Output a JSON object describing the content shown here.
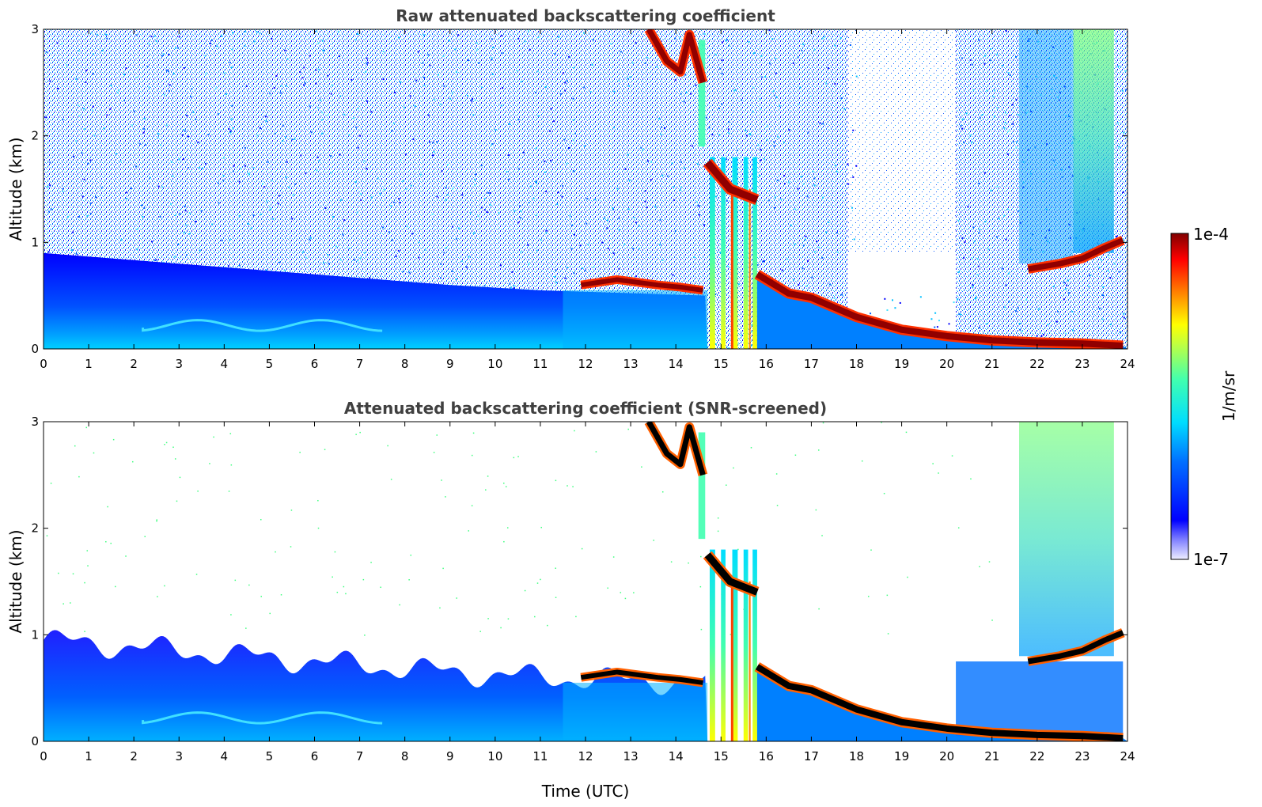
{
  "chart_data": [
    {
      "type": "heatmap",
      "title": "Raw attenuated backscattering coefficient",
      "xlabel": "",
      "ylabel": "Altitude (km)",
      "xlim": [
        0,
        24
      ],
      "ylim": [
        0,
        3
      ],
      "xticks": [
        "0",
        "1",
        "2",
        "3",
        "4",
        "5",
        "6",
        "7",
        "8",
        "9",
        "10",
        "11",
        "12",
        "13",
        "14",
        "15",
        "16",
        "17",
        "18",
        "19",
        "20",
        "21",
        "22",
        "23",
        "24"
      ],
      "yticks": [
        "0",
        "1",
        "2",
        "3"
      ],
      "features": {
        "noise_top_km": 3,
        "boundary_layer_top_km": [
          [
            0,
            0.9
          ],
          [
            3,
            0.8
          ],
          [
            6,
            0.7
          ],
          [
            9,
            0.6
          ],
          [
            11,
            0.55
          ],
          [
            14.7,
            0.5
          ]
        ],
        "cloud_layer_km": [
          [
            11.9,
            0.6
          ],
          [
            12.7,
            0.65
          ],
          [
            13.6,
            0.6
          ],
          [
            14.1,
            0.58
          ],
          [
            14.6,
            0.55
          ]
        ],
        "high_cloud_km": [
          [
            13.4,
            3.0
          ],
          [
            13.8,
            2.7
          ],
          [
            14.1,
            2.6
          ],
          [
            14.3,
            2.95
          ],
          [
            14.6,
            2.5
          ]
        ],
        "mid_cloud_km": [
          [
            14.7,
            1.75
          ],
          [
            15.2,
            1.5
          ],
          [
            15.8,
            1.4
          ]
        ],
        "descending_cloud_km": [
          [
            15.8,
            0.7
          ],
          [
            16.5,
            0.52
          ],
          [
            17,
            0.48
          ],
          [
            18,
            0.3
          ],
          [
            19,
            0.18
          ],
          [
            20,
            0.12
          ],
          [
            21,
            0.08
          ],
          [
            22,
            0.06
          ],
          [
            23,
            0.05
          ],
          [
            23.9,
            0.03
          ]
        ],
        "upper_cloud_km": [
          [
            21.8,
            0.75
          ],
          [
            22.5,
            0.8
          ],
          [
            23,
            0.85
          ],
          [
            23.5,
            0.95
          ],
          [
            23.9,
            1.02
          ]
        ]
      }
    },
    {
      "type": "heatmap",
      "title": "Attenuated backscattering coefficient (SNR-screened)",
      "xlabel": "Time (UTC)",
      "ylabel": "Altitude (km)",
      "xlim": [
        0,
        24
      ],
      "ylim": [
        0,
        3
      ],
      "xticks": [
        "0",
        "1",
        "2",
        "3",
        "4",
        "5",
        "6",
        "7",
        "8",
        "9",
        "10",
        "11",
        "12",
        "13",
        "14",
        "15",
        "16",
        "17",
        "18",
        "19",
        "20",
        "21",
        "22",
        "23",
        "24"
      ],
      "yticks": [
        "0",
        "1",
        "2",
        "3"
      ]
    }
  ],
  "colorbar": {
    "label": "1/m/sr",
    "max_label": "1e-4",
    "min_label": "1e-7",
    "scale": "log",
    "range": [
      1e-07,
      0.0001
    ],
    "colormap": "jet",
    "colors": [
      "#ffffff",
      "#0000ff",
      "#00ffff",
      "#ffff00",
      "#ff0000",
      "#800000"
    ]
  }
}
